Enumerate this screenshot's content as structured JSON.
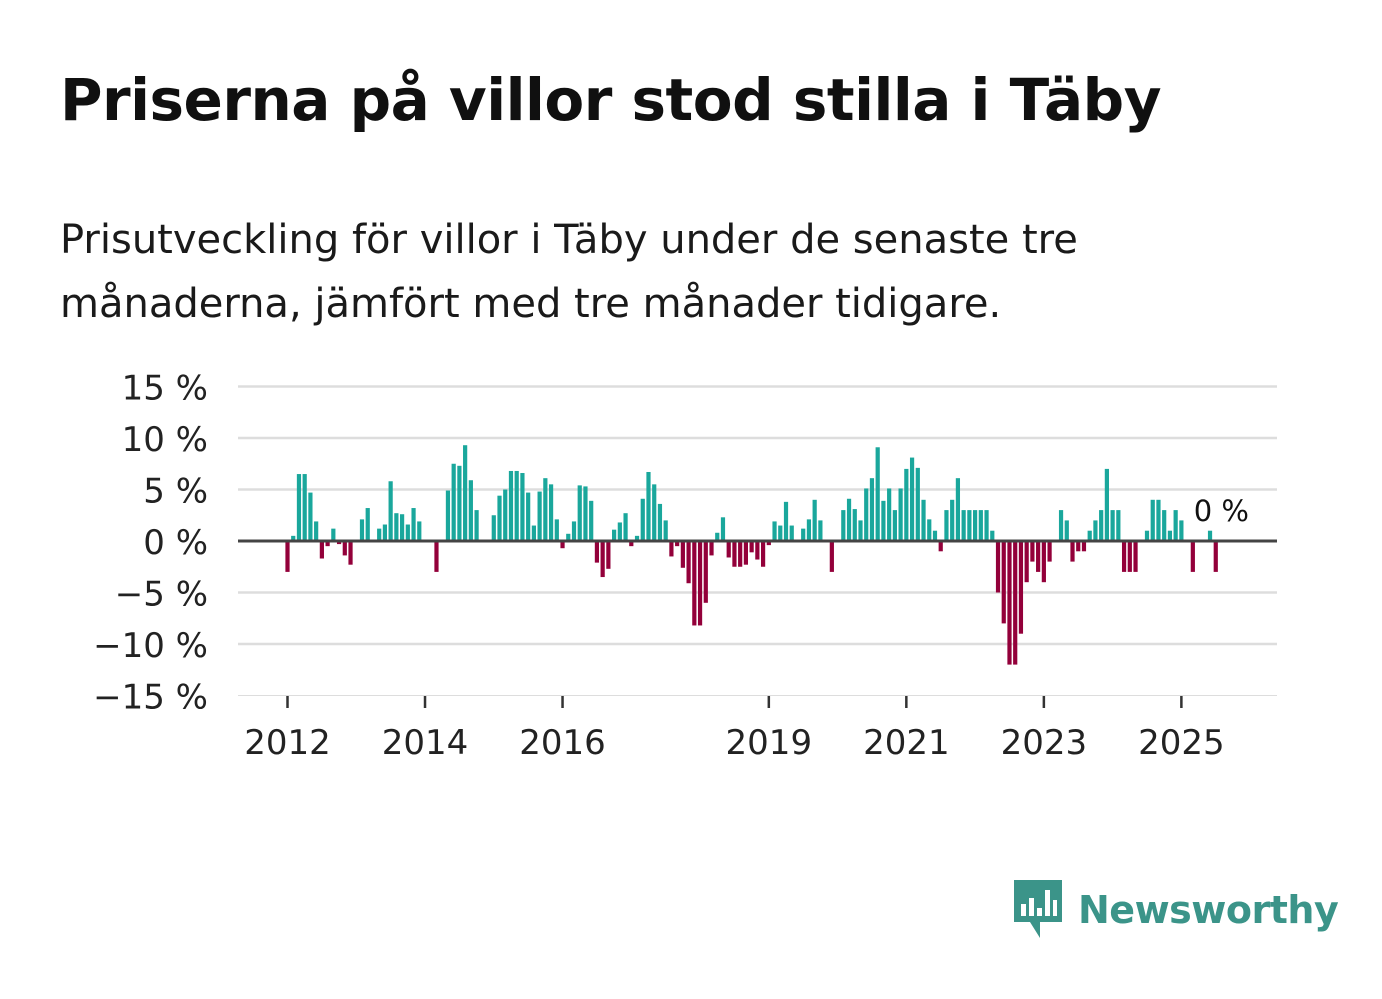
{
  "title": "Priserna på villor stod stilla i Täby",
  "subtitle": "Prisutveckling för villor i Täby under de senaste tre månaderna, jämfört med tre månader tidigare.",
  "brand": {
    "name": "Newsworthy",
    "color": "#3b9489",
    "icon": "newsworthy-logo-icon"
  },
  "colors": {
    "positive": "#1aa79c",
    "negative": "#93003a",
    "zero_line": "#444444",
    "grid": "#dddddd"
  },
  "chart_data": {
    "type": "bar",
    "title": "Priserna på villor stod stilla i Täby",
    "ylabel": "",
    "xlabel": "",
    "ylim": [
      -15,
      15
    ],
    "yticks": [
      15,
      10,
      5,
      0,
      -5,
      -10,
      -15
    ],
    "ytick_labels": [
      "15 %",
      "10 %",
      "5 %",
      "0 %",
      "−5 %",
      "−10 %",
      "−15 %"
    ],
    "xticks": [
      {
        "label": "2012",
        "year": 2012
      },
      {
        "label": "2014",
        "year": 2014
      },
      {
        "label": "2016",
        "year": 2016
      },
      {
        "label": "2019",
        "year": 2019
      },
      {
        "label": "2021",
        "year": 2021
      },
      {
        "label": "2023",
        "year": 2023
      },
      {
        "label": "2025",
        "year": 2025
      }
    ],
    "start": {
      "year": 2012,
      "month": 1
    },
    "annotation": {
      "label": "0 %",
      "value": 0
    },
    "grid": true,
    "values": [
      -3,
      0.5,
      6.5,
      6.5,
      4.7,
      1.9,
      -1.7,
      -0.5,
      1.2,
      -0.3,
      -1.4,
      -2.3,
      0,
      2.1,
      3.2,
      0,
      1.2,
      1.6,
      5.8,
      2.7,
      2.6,
      1.6,
      3.2,
      1.9,
      0,
      0,
      -3,
      0,
      4.9,
      7.5,
      7.3,
      9.3,
      5.9,
      3,
      0,
      0,
      2.5,
      4.4,
      5,
      6.8,
      6.8,
      6.6,
      4.7,
      1.5,
      4.8,
      6.1,
      5.5,
      2.1,
      -0.7,
      0.7,
      1.9,
      5.4,
      5.3,
      3.9,
      -2.1,
      -3.5,
      -2.7,
      1.1,
      1.8,
      2.7,
      -0.5,
      0.5,
      4.1,
      6.7,
      5.5,
      3.6,
      2,
      -1.5,
      -0.5,
      -2.6,
      -4.1,
      -8.2,
      -8.2,
      -6,
      -1.4,
      0.8,
      2.3,
      -1.6,
      -2.5,
      -2.5,
      -2.3,
      -1.1,
      -1.8,
      -2.5,
      -0.4,
      1.9,
      1.5,
      3.8,
      1.5,
      0,
      1.2,
      2.1,
      4,
      2,
      0,
      -3,
      0,
      3,
      4.1,
      3.1,
      2,
      5.1,
      6.1,
      9.1,
      3.9,
      5.1,
      3,
      5.1,
      7,
      8.1,
      7.1,
      4,
      2.1,
      1,
      -1,
      3,
      4,
      6.1,
      3,
      3,
      3,
      3,
      3,
      1,
      -5,
      -8,
      -12,
      -12,
      -9,
      -4,
      -2,
      -3,
      -4,
      -2,
      0,
      3,
      2,
      -2,
      -1,
      -1,
      1,
      2,
      3,
      7,
      3,
      3,
      -3,
      -3,
      -3,
      0,
      1,
      4,
      4,
      3,
      1,
      3,
      2,
      0,
      -3,
      0,
      0,
      1,
      -3
    ]
  }
}
